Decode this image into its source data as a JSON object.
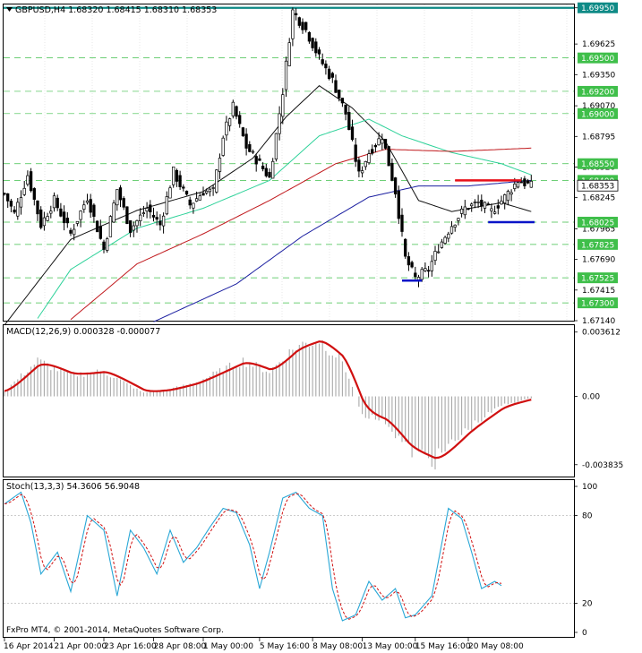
{
  "chart_data": [
    {
      "type": "candlestick",
      "title": "GBPUSD,H4  1.68320 1.68415 1.68310 1.68353",
      "ylim": [
        1.6714,
        1.6998
      ],
      "y_ticks": [
        "1.69950",
        "1.69625",
        "1.69350",
        "1.69070",
        "1.68795",
        "1.68520",
        "1.68245",
        "1.67965",
        "1.67690",
        "1.67415",
        "1.67140"
      ],
      "levels": [
        {
          "label": "1.69950",
          "value": 1.6995,
          "style": "highlight"
        },
        {
          "label": "1.69500",
          "value": 1.695,
          "style": "dashed"
        },
        {
          "label": "1.69200",
          "value": 1.692,
          "style": "dashed"
        },
        {
          "label": "1.69000",
          "value": 1.69,
          "style": "dashed"
        },
        {
          "label": "1.68550",
          "value": 1.6855,
          "style": "dashed"
        },
        {
          "label": "1.68400",
          "value": 1.684,
          "style": "dashed"
        },
        {
          "label": "1.68025",
          "value": 1.68025,
          "style": "dashed"
        },
        {
          "label": "1.67825",
          "value": 1.67825,
          "style": "dashed"
        },
        {
          "label": "1.67525",
          "value": 1.67525,
          "style": "dashed"
        },
        {
          "label": "1.67300",
          "value": 1.673,
          "style": "dashed"
        }
      ],
      "current_price": {
        "label": "1.68353",
        "value": 1.68353
      },
      "segments": [
        {
          "color": "#e8101a",
          "x0": 136,
          "x1": 156,
          "y": 1.684
        },
        {
          "color": "#0a14c8",
          "x0": 146,
          "x1": 160,
          "y": 1.68025
        },
        {
          "color": "#0a14c8",
          "x0": 120,
          "x1": 126,
          "y": 1.675
        }
      ],
      "anchors": [
        [
          0,
          1.6828
        ],
        [
          3,
          1.681
        ],
        [
          7,
          1.6845
        ],
        [
          11,
          1.68
        ],
        [
          15,
          1.6822
        ],
        [
          20,
          1.6792
        ],
        [
          25,
          1.6825
        ],
        [
          30,
          1.6778
        ],
        [
          34,
          1.6832
        ],
        [
          38,
          1.6796
        ],
        [
          43,
          1.6815
        ],
        [
          47,
          1.68
        ],
        [
          51,
          1.6848
        ],
        [
          56,
          1.6818
        ],
        [
          60,
          1.683
        ],
        [
          63,
          1.683
        ],
        [
          66,
          1.688
        ],
        [
          69,
          1.6906
        ],
        [
          73,
          1.687
        ],
        [
          77,
          1.6855
        ],
        [
          80,
          1.6842
        ],
        [
          84,
          1.692
        ],
        [
          87,
          1.6992
        ],
        [
          91,
          1.6975
        ],
        [
          95,
          1.695
        ],
        [
          99,
          1.693
        ],
        [
          103,
          1.69
        ],
        [
          107,
          1.6845
        ],
        [
          110,
          1.6865
        ],
        [
          114,
          1.688
        ],
        [
          118,
          1.683
        ],
        [
          121,
          1.677
        ],
        [
          124,
          1.6752
        ],
        [
          128,
          1.676
        ],
        [
          131,
          1.678
        ],
        [
          135,
          1.68
        ],
        [
          139,
          1.6815
        ],
        [
          143,
          1.682
        ],
        [
          147,
          1.6812
        ],
        [
          151,
          1.6825
        ],
        [
          155,
          1.684
        ],
        [
          159,
          1.6835
        ]
      ],
      "overlays": [
        {
          "name": "fast",
          "color": "#111111",
          "anchors": [
            [
              0,
              1.671
            ],
            [
              20,
              1.6787
            ],
            [
              40,
              1.6813
            ],
            [
              60,
              1.683
            ],
            [
              75,
              1.686
            ],
            [
              85,
              1.6897
            ],
            [
              95,
              1.6925
            ],
            [
              105,
              1.6905
            ],
            [
              115,
              1.6875
            ],
            [
              125,
              1.6822
            ],
            [
              135,
              1.6812
            ],
            [
              150,
              1.682
            ],
            [
              159,
              1.6812
            ]
          ]
        },
        {
          "name": "mid",
          "color": "#2fd29a",
          "anchors": [
            [
              10,
              1.6716
            ],
            [
              20,
              1.676
            ],
            [
              40,
              1.6797
            ],
            [
              60,
              1.6815
            ],
            [
              80,
              1.684
            ],
            [
              95,
              1.688
            ],
            [
              110,
              1.6895
            ],
            [
              120,
              1.688
            ],
            [
              135,
              1.6865
            ],
            [
              150,
              1.6855
            ],
            [
              159,
              1.6845
            ]
          ]
        },
        {
          "name": "slow",
          "color": "#c0181c",
          "anchors": [
            [
              20,
              1.6715
            ],
            [
              40,
              1.6765
            ],
            [
              60,
              1.6792
            ],
            [
              80,
              1.6822
            ],
            [
              100,
              1.6855
            ],
            [
              115,
              1.6868
            ],
            [
              135,
              1.6866
            ],
            [
              159,
              1.6869
            ]
          ]
        },
        {
          "name": "long",
          "color": "#1a1ea0",
          "anchors": [
            [
              45,
              1.6713
            ],
            [
              70,
              1.6747
            ],
            [
              90,
              1.679
            ],
            [
              110,
              1.6825
            ],
            [
              125,
              1.6835
            ],
            [
              140,
              1.6835
            ],
            [
              159,
              1.684
            ]
          ]
        }
      ]
    },
    {
      "type": "macd",
      "title": "MACD(12,26,9) 0.000328 -0.000077",
      "ylim": [
        -0.0045,
        0.004
      ],
      "y_ticks": [
        "0.003612",
        "0.00",
        "-0.003835"
      ],
      "zero_label": "0.00",
      "signal_color": "#d01010",
      "hist_color": "#a8a8a8",
      "anchors": [
        [
          0,
          0.0003
        ],
        [
          10,
          0.002
        ],
        [
          20,
          0.0012
        ],
        [
          30,
          0.0014
        ],
        [
          42,
          0.0002
        ],
        [
          50,
          0.0004
        ],
        [
          58,
          0.0008
        ],
        [
          72,
          0.002
        ],
        [
          80,
          0.0014
        ],
        [
          88,
          0.0028
        ],
        [
          95,
          0.0032
        ],
        [
          102,
          0.002
        ],
        [
          108,
          -0.001
        ],
        [
          115,
          -0.0014
        ],
        [
          122,
          -0.003
        ],
        [
          130,
          -0.0036
        ],
        [
          140,
          -0.0018
        ],
        [
          150,
          -0.0005
        ],
        [
          159,
          -0.0001
        ]
      ]
    },
    {
      "type": "stochastic",
      "title": "Stoch(13,3,3) 54.3606 56.9048",
      "ylim": [
        0,
        100
      ],
      "y_ticks": [
        "100",
        "80",
        "20",
        "0"
      ],
      "levels": [
        80,
        20
      ],
      "main_color": "#29a7d6",
      "signal_color": "#d01010",
      "anchors": [
        [
          0,
          88
        ],
        [
          5,
          96
        ],
        [
          8,
          75
        ],
        [
          11,
          40
        ],
        [
          16,
          55
        ],
        [
          20,
          28
        ],
        [
          25,
          80
        ],
        [
          30,
          70
        ],
        [
          34,
          25
        ],
        [
          38,
          70
        ],
        [
          42,
          58
        ],
        [
          46,
          40
        ],
        [
          50,
          70
        ],
        [
          54,
          48
        ],
        [
          58,
          58
        ],
        [
          62,
          72
        ],
        [
          66,
          85
        ],
        [
          70,
          82
        ],
        [
          74,
          60
        ],
        [
          77,
          30
        ],
        [
          80,
          55
        ],
        [
          84,
          92
        ],
        [
          88,
          96
        ],
        [
          92,
          85
        ],
        [
          96,
          80
        ],
        [
          99,
          30
        ],
        [
          102,
          8
        ],
        [
          106,
          12
        ],
        [
          110,
          35
        ],
        [
          114,
          22
        ],
        [
          118,
          30
        ],
        [
          121,
          10
        ],
        [
          124,
          12
        ],
        [
          129,
          25
        ],
        [
          134,
          85
        ],
        [
          138,
          78
        ],
        [
          141,
          55
        ],
        [
          144,
          30
        ],
        [
          148,
          35
        ],
        [
          150,
          32
        ]
      ]
    }
  ],
  "x_axis": {
    "labels": [
      "16 Apr 2014",
      "21 Apr 00:00",
      "23 Apr 16:00",
      "28 Apr 08:00",
      "1 May 00:00",
      "5 May 16:00",
      "8 May 08:00",
      "13 May 00:00",
      "15 May 16:00",
      "20 May 08:00"
    ],
    "label_bars": [
      0,
      15,
      30,
      45,
      60,
      77,
      93,
      108,
      124,
      140
    ]
  },
  "copyright": "FxPro MT4, © 2001-2014, MetaQuotes Software Corp."
}
